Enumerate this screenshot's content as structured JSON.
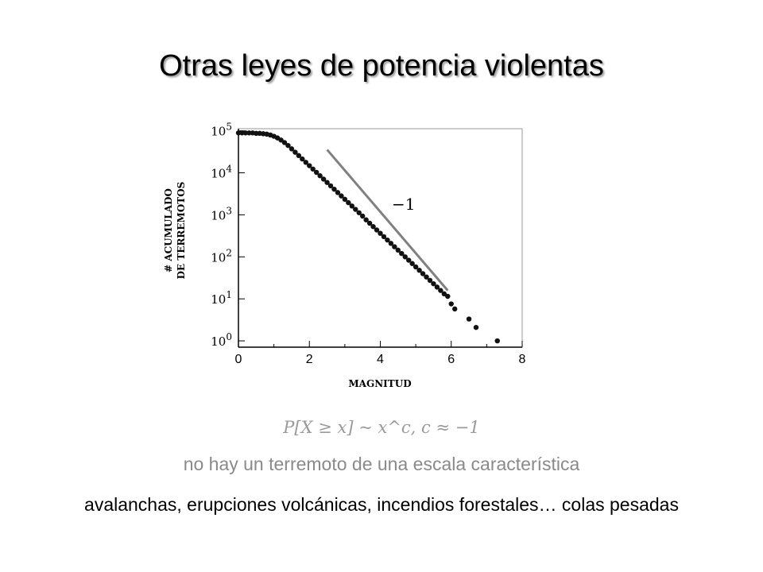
{
  "slide": {
    "title": "Otras leyes de potencia violentas",
    "formula": "P[X ≥ x] ~ x^c,   c ≈ −1",
    "line1": "no hay un terremoto de una escala característica",
    "line2": "avalanchas, erupciones volcánicas, incendios forestales… colas pesadas"
  },
  "colors": {
    "points": "#111111",
    "reference_line": "#808080",
    "axis": "#000000",
    "text_gray": "#8a8a8a"
  },
  "chart_data": {
    "type": "scatter",
    "title": "",
    "xlabel": "MAGNITUD",
    "ylabel_line1": "# ACUMULADO",
    "ylabel_line2": "DE TERREMOTOS",
    "xlim": [
      0,
      8
    ],
    "ylim": [
      -0.15,
      5.05
    ],
    "y_scale": "log10",
    "xticks": [
      0,
      2,
      4,
      6,
      8
    ],
    "xtick_labels": [
      "0",
      "2",
      "4",
      "6",
      "8"
    ],
    "yticks": [
      0,
      1,
      2,
      3,
      4,
      5
    ],
    "ytick_labels": [
      "10^0",
      "10^1",
      "10^2",
      "10^3",
      "10^4",
      "10^5"
    ],
    "annotation": "−1",
    "reference_line": {
      "x": [
        2.5,
        5.9
      ],
      "log10_y": [
        4.55,
        1.2
      ]
    },
    "series": [
      {
        "x": [
          0.0,
          0.1,
          0.2,
          0.3,
          0.4,
          0.5,
          0.6,
          0.7,
          0.8,
          0.9,
          1.0,
          1.1,
          1.2,
          1.3,
          1.4,
          1.5,
          1.6,
          1.7,
          1.8,
          1.9,
          2.0,
          2.1,
          2.2,
          2.3,
          2.4,
          2.5,
          2.6,
          2.7,
          2.8,
          2.9,
          3.0,
          3.1,
          3.2,
          3.3,
          3.4,
          3.5,
          3.6,
          3.7,
          3.8,
          3.9,
          4.0,
          4.1,
          4.2,
          4.3,
          4.4,
          4.5,
          4.6,
          4.7,
          4.8,
          4.9,
          5.0,
          5.1,
          5.2,
          5.3,
          5.4,
          5.5,
          5.6,
          5.7,
          5.8,
          5.9,
          6.0,
          6.1,
          6.5,
          6.7,
          7.3
        ],
        "log10_y": [
          4.95,
          4.95,
          4.95,
          4.95,
          4.95,
          4.94,
          4.94,
          4.93,
          4.92,
          4.9,
          4.87,
          4.83,
          4.78,
          4.72,
          4.65,
          4.57,
          4.49,
          4.41,
          4.33,
          4.25,
          4.17,
          4.09,
          4.01,
          3.93,
          3.85,
          3.77,
          3.69,
          3.61,
          3.53,
          3.45,
          3.37,
          3.29,
          3.21,
          3.13,
          3.05,
          2.97,
          2.88,
          2.8,
          2.72,
          2.64,
          2.56,
          2.48,
          2.4,
          2.32,
          2.24,
          2.16,
          2.08,
          2.0,
          1.92,
          1.84,
          1.76,
          1.68,
          1.6,
          1.52,
          1.44,
          1.36,
          1.28,
          1.2,
          1.12,
          1.06,
          0.88,
          0.76,
          0.52,
          0.32,
          0.0
        ]
      }
    ]
  }
}
